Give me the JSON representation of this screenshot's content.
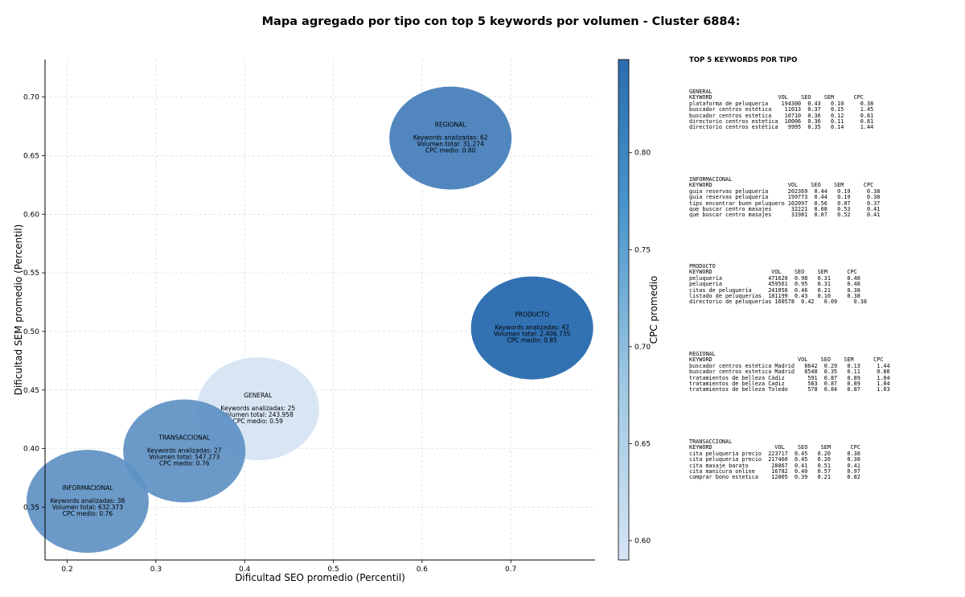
{
  "chart_data": {
    "type": "scatter",
    "title": "Mapa agregado por tipo con top 5 keywords por volumen - Cluster 6884:",
    "xlabel": "Dificultad SEO promedio (Percentil)",
    "ylabel": "Dificultad SEM promedio (Percentil)",
    "colorbar_label": "CPC promedio",
    "xlim": [
      0.175,
      0.795
    ],
    "ylim": [
      0.305,
      0.732
    ],
    "clim": [
      0.59,
      0.848
    ],
    "x_ticks": [
      "0.2",
      "0.3",
      "0.4",
      "0.5",
      "0.6",
      "0.7"
    ],
    "y_ticks": [
      "0.35",
      "0.40",
      "0.45",
      "0.50",
      "0.55",
      "0.60",
      "0.65",
      "0.70"
    ],
    "c_ticks": [
      "0.60",
      "0.65",
      "0.70",
      "0.75",
      "0.80"
    ],
    "grid": true,
    "points": [
      {
        "name": "REGIONAL",
        "x": 0.632,
        "y": 0.665,
        "cpc": 0.8,
        "lines": [
          "Keywords analizadas: 62",
          "Volumen total: 31.274",
          "CPC medio: 0.80"
        ]
      },
      {
        "name": "PRODUCTO",
        "x": 0.724,
        "y": 0.503,
        "cpc": 0.85,
        "lines": [
          "Keywords analizadas: 42",
          "Volumen total: 2.406.735",
          "CPC medio: 0.85"
        ]
      },
      {
        "name": "GENERAL",
        "x": 0.415,
        "y": 0.434,
        "cpc": 0.59,
        "lines": [
          "Keywords analizadas: 25",
          "Volumen total: 243.958",
          "CPC medio: 0.59"
        ]
      },
      {
        "name": "TRANSACCIONAL",
        "x": 0.332,
        "y": 0.398,
        "cpc": 0.76,
        "lines": [
          "Keywords analizadas: 27",
          "Volumen total: 547.273",
          "CPC medio: 0.76"
        ]
      },
      {
        "name": "INFORMACIONAL",
        "x": 0.223,
        "y": 0.355,
        "cpc": 0.76,
        "lines": [
          "Keywords analizadas: 38",
          "Volumen total: 632.373",
          "CPC medio: 0.76"
        ]
      }
    ]
  },
  "colors": {
    "cmap_low": "#c6dbef",
    "cmap_high": "#2166ac"
  },
  "panel": {
    "title": "TOP 5 KEYWORDS POR TIPO",
    "sections": [
      {
        "text": "GENERAL\nKEYWORD                    VOL    SEO    SEM      CPC\nplataforma de peluquería    194300  0.43   0.10     0.38\nbuscador centros estética    11013  0.37   0.15     1.45\nbuscador centros estetica    10710  0.36   0.12     0.81\ndirectorio centros estetica  10006  0.36   0.11     0.81\ndirectorio centros estética   9995  0.35   0.14     1.44"
      },
      {
        "text": "INFORMACIONAL\nKEYWORD                       VOL    SEO    SEM      CPC\nguia reservas peluquería      202369  0.44   0.19     0.38\nguía reservas peluquería      199773  0.44   0.19     0.38\ntips encontrar buen peluquero 102097  0.56   0.07     0.37\nque buscar centro masajes      32221  0.08   0.53     0.41\nqué buscar centro masajes      31981  0.07   0.52     0.41"
      },
      {
        "text": "PRODUCTO\nKEYWORD                  VOL    SEO    SEM      CPC\npeluquería              471620  0.98   0.31     0.48\npeluqueria              459561  0.95   0.31     0.48\ncitas de peluquería     241056  0.46   0.21     0.38\nlistado de peluquerías  181199  0.43   0.10     0.38\ndirectorio de peluquerías 160578  0.42   0.09     0.38"
      },
      {
        "text": "REGIONAL\nKEYWORD                          VOL    SEO    SEM      CPC\nbuscador centros estética Madrid   8642  0.29   0.13     1.44\nbuscador centros estetica Madrid   8548  0.35   0.11     0.80\ntratamientos de belleza Cádiz       591  0.87   0.89     1.04\ntratamientos de belleza Cadiz       583  0.87   0.89     1.04\ntratamientos de belleza Toledo      578  0.84   0.87     1.03"
      },
      {
        "text": "TRANSACCIONAL\nKEYWORD                   VOL    SEO    SEM      CPC\ncita peluquería precio  223717  0.45   0.20     0.38\ncita peluqueria precio  217460  0.45   0.20     0.38\ncita masaje barato       28867  0.41   0.51     0.41\ncita manicura online     16782  0.40   0.57     0.97\ncomprar bono estetica    12805  0.39   0.21     0.82"
      }
    ]
  }
}
